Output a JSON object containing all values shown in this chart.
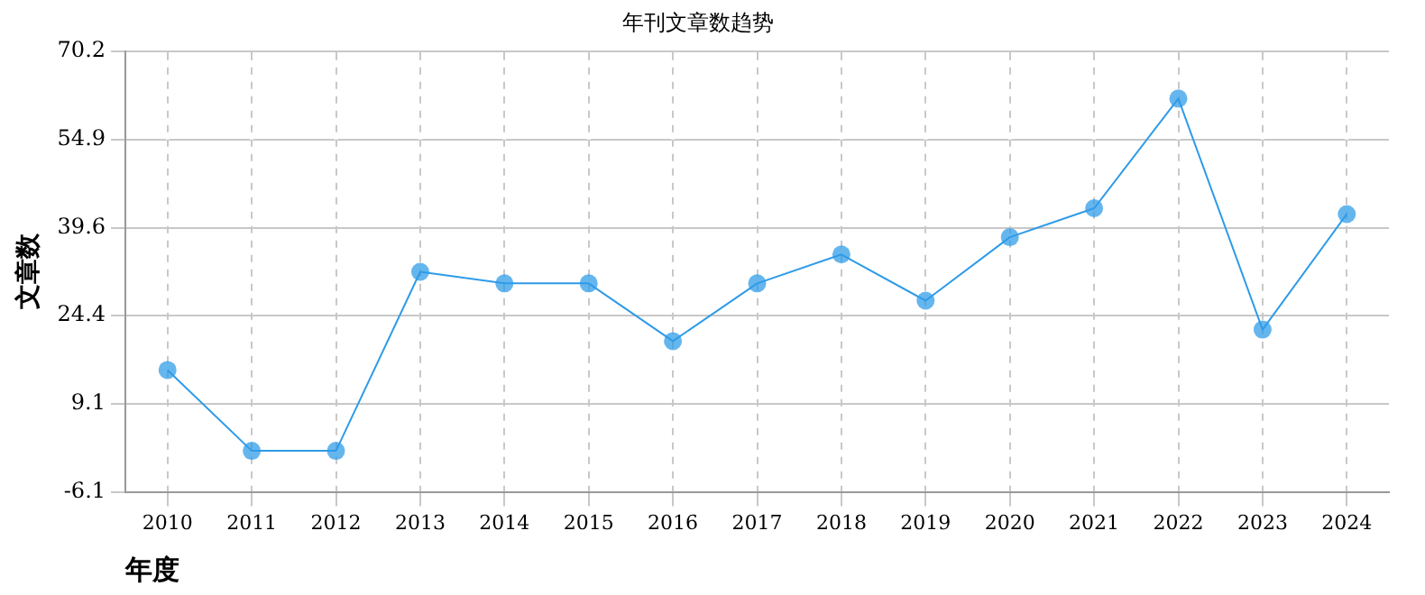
{
  "chart_data": {
    "type": "line",
    "title": "年刊文章数趋势",
    "xlabel": "年度",
    "ylabel": "文章数",
    "categories": [
      "2010",
      "2011",
      "2012",
      "2013",
      "2014",
      "2015",
      "2016",
      "2017",
      "2018",
      "2019",
      "2020",
      "2021",
      "2022",
      "2023",
      "2024"
    ],
    "series": [
      {
        "color": "#2f9be8",
        "values": [
          15,
          1,
          1,
          32,
          30,
          30,
          20,
          30,
          35,
          27,
          38,
          43,
          62,
          22,
          42
        ]
      }
    ],
    "ylim": [
      -6.1,
      70.2
    ],
    "yticks": [
      -6.1,
      9.1,
      24.4,
      39.6,
      54.9,
      70.2
    ],
    "grid": true,
    "marker": "circle",
    "line_style": "solid"
  }
}
